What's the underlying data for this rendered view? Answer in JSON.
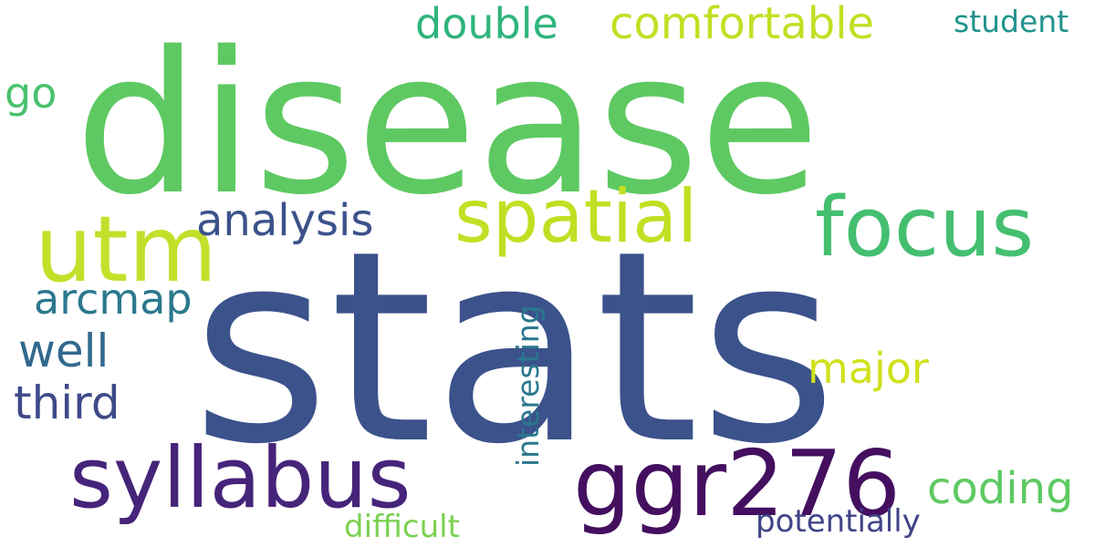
{
  "words": [
    {
      "text": "disease",
      "color": "#5ec962"
    },
    {
      "text": "stats",
      "color": "#3b528b"
    },
    {
      "text": "ggr276",
      "color": "#440f5f"
    },
    {
      "text": "syllabus",
      "color": "#46247a"
    },
    {
      "text": "utm",
      "color": "#c4df2a"
    },
    {
      "text": "focus",
      "color": "#44bf70"
    },
    {
      "text": "spatial",
      "color": "#c2df23"
    },
    {
      "text": "analysis",
      "color": "#3b528b"
    },
    {
      "text": "arcmap",
      "color": "#2a788e"
    },
    {
      "text": "well",
      "color": "#31688e"
    },
    {
      "text": "third",
      "color": "#3e4a89"
    },
    {
      "text": "major",
      "color": "#d0e11c"
    },
    {
      "text": "coding",
      "color": "#5ec962"
    },
    {
      "text": "double",
      "color": "#2fb47c"
    },
    {
      "text": "comfortable",
      "color": "#c2df23"
    },
    {
      "text": "student",
      "color": "#20938c"
    },
    {
      "text": "go",
      "color": "#4ac16d"
    },
    {
      "text": "interesting",
      "color": "#2a788e"
    },
    {
      "text": "difficult",
      "color": "#7ad151"
    },
    {
      "text": "potentially",
      "color": "#414487"
    }
  ]
}
